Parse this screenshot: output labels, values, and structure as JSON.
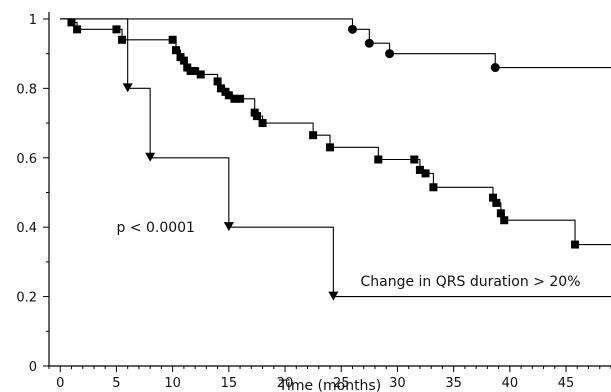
{
  "chart_data": {
    "type": "line",
    "xlabel": "Time (months)",
    "ylabel": "",
    "xlim": [
      -1,
      49
    ],
    "ylim": [
      0,
      1.02
    ],
    "x_ticks": [
      0,
      5,
      10,
      15,
      20,
      25,
      30,
      35,
      40,
      45
    ],
    "y_ticks": [
      0,
      0.2,
      0.4,
      0.6,
      0.8,
      1
    ],
    "x_tick_labels": [
      "0",
      "5",
      "10",
      "15",
      "20",
      "25",
      "30",
      "35",
      "40",
      "45"
    ],
    "y_tick_labels": [
      "0",
      "0.2",
      "0.4",
      "0.6",
      "0.8",
      "1"
    ],
    "grid": false,
    "annotations": [
      {
        "text": "p < 0.0001",
        "x": 5,
        "y": 0.4
      },
      {
        "text": "Change in QRS duration > 20%",
        "x": 36.5,
        "y": 0.245
      }
    ],
    "series": [
      {
        "marker": "circle",
        "x": [
          0,
          26,
          27.5,
          29.3,
          38.7
        ],
        "y": [
          1.0,
          0.97,
          0.93,
          0.9,
          0.86
        ],
        "x_end": 49
      },
      {
        "marker": "square",
        "x": [
          0,
          1,
          1.5,
          5,
          5.5,
          10,
          10.3,
          10.7,
          11,
          11.3,
          11.6,
          12,
          12.5,
          14,
          14.3,
          14.7,
          15,
          15.5,
          16,
          17.3,
          17.5,
          18,
          22.5,
          24,
          28.3,
          31.5,
          32,
          32.5,
          33.2,
          38.5,
          38.8,
          39.2,
          39.5,
          45.8
        ],
        "y": [
          1.0,
          0.99,
          0.97,
          0.97,
          0.94,
          0.94,
          0.91,
          0.89,
          0.88,
          0.86,
          0.85,
          0.85,
          0.84,
          0.82,
          0.8,
          0.79,
          0.78,
          0.77,
          0.77,
          0.73,
          0.72,
          0.7,
          0.665,
          0.63,
          0.595,
          0.595,
          0.565,
          0.555,
          0.515,
          0.485,
          0.47,
          0.44,
          0.42,
          0.35
        ],
        "x_end": 49
      },
      {
        "marker": "triangle",
        "x": [
          0,
          6,
          8,
          15,
          24.3
        ],
        "y": [
          1.0,
          0.8,
          0.6,
          0.4,
          0.2
        ],
        "x_end": 49
      }
    ]
  }
}
